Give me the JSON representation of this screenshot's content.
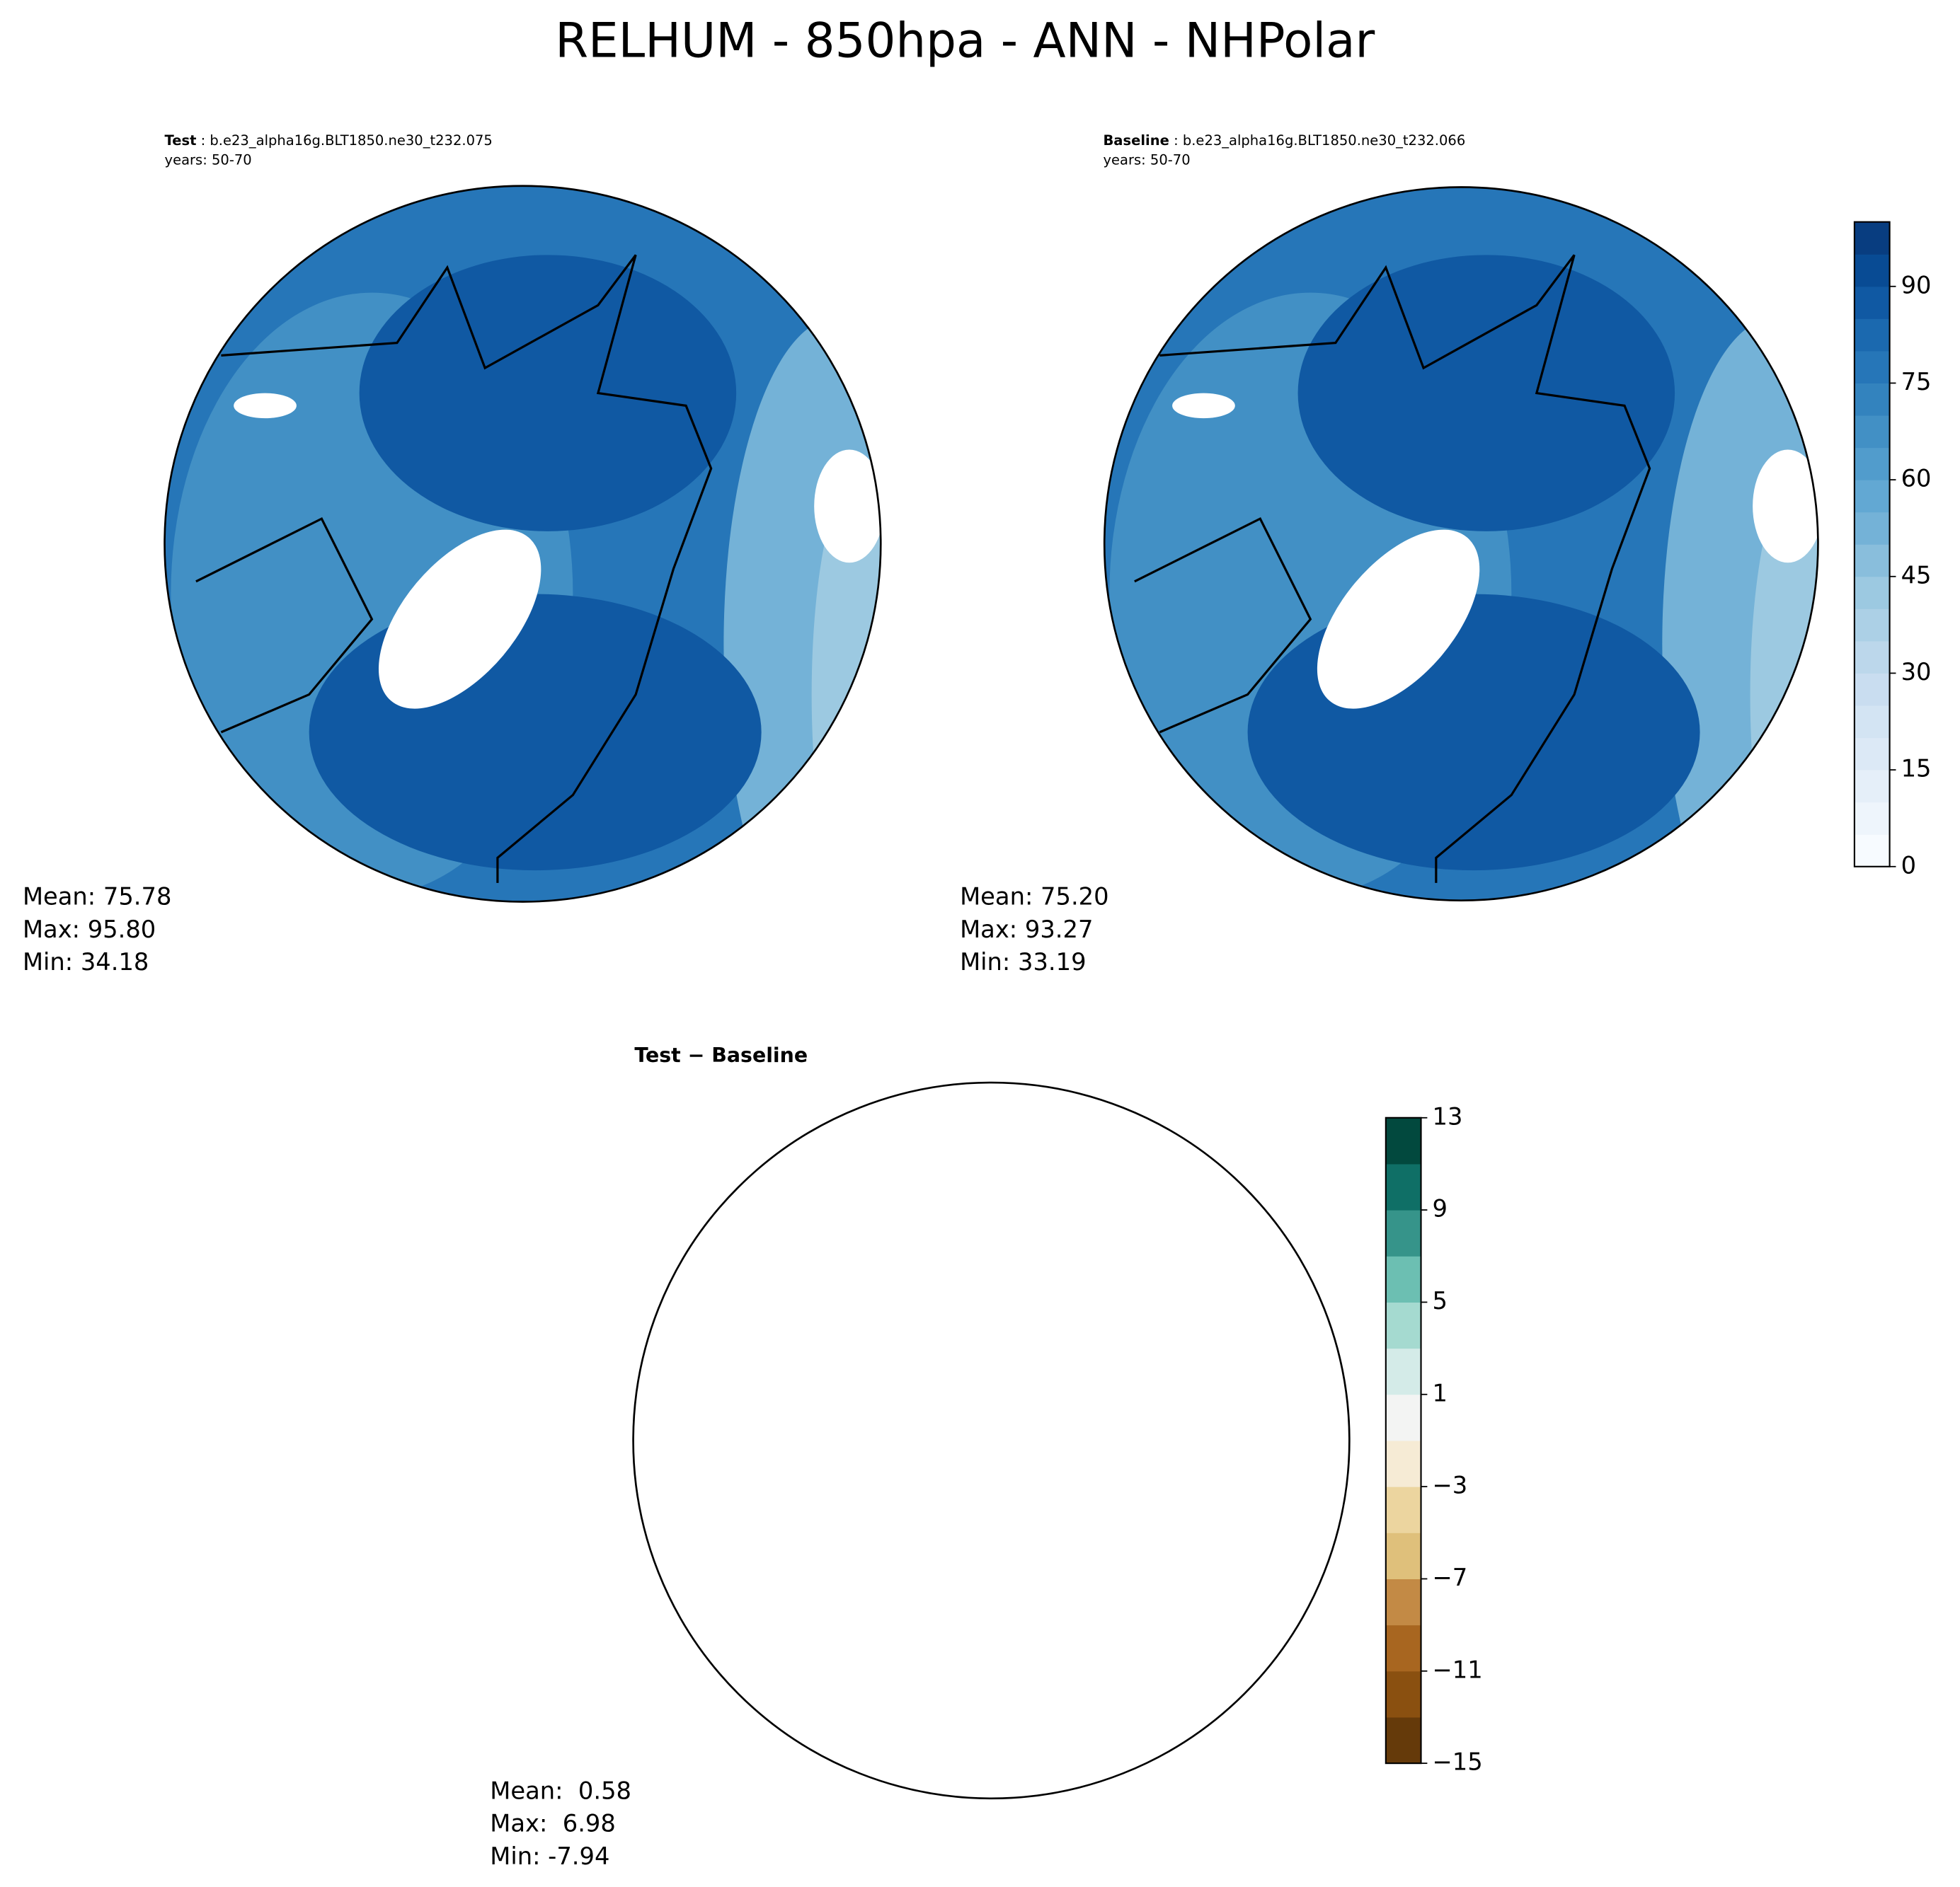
{
  "title": "RELHUM - 850hpa - ANN - NHPolar",
  "panels": [
    {
      "label": "Test",
      "name": ": b.e23_alpha16g.BLT1850.ne30_t232.075",
      "years": "years: 50-70",
      "stats": [
        "Mean: 75.78",
        "Max: 95.80",
        "Min: 34.18"
      ]
    },
    {
      "label": "Baseline",
      "name": ": b.e23_alpha16g.BLT1850.ne30_t232.066",
      "years": "years: 50-70",
      "stats": [
        "Mean: 75.20",
        "Max: 93.27",
        "Min: 33.19"
      ]
    },
    {
      "label": "Test − Baseline",
      "stats": [
        "Mean:  0.58",
        "Max:  6.98",
        "Min: -7.94"
      ]
    }
  ],
  "colorbars": [
    {
      "lim": [
        0,
        100
      ],
      "ticks": [
        0,
        15,
        30,
        45,
        60,
        75,
        90
      ],
      "colors": [
        "#f7fbff",
        "#eef5fc",
        "#e5eff9",
        "#dce9f6",
        "#d3e4f3",
        "#c9ddf0",
        "#bcd7eb",
        "#acd0e6",
        "#9cc9e1",
        "#89bedc",
        "#74b2d7",
        "#62a8d3",
        "#519ccc",
        "#4290c5",
        "#3383be",
        "#2676b8",
        "#1b69af",
        "#1059a3",
        "#084b94",
        "#083d80"
      ]
    },
    {
      "lim": [
        -15,
        13
      ],
      "ticks": [
        {
          "value": -15,
          "label": "−15"
        },
        {
          "value": -11,
          "label": "−11"
        },
        {
          "value": -7,
          "label": "−7"
        },
        {
          "value": -3,
          "label": "−3"
        },
        1,
        5,
        9,
        13
      ],
      "colors": [
        "#653a0a",
        "#8a5010",
        "#a86620",
        "#c38a45",
        "#dfc07b",
        "#ecd59f",
        "#f6ebd5",
        "#f3f4f3",
        "#d4ebe8",
        "#a5dad0",
        "#6cbfb2",
        "#36948a",
        "#0f6f66",
        "#02493e"
      ]
    }
  ]
}
